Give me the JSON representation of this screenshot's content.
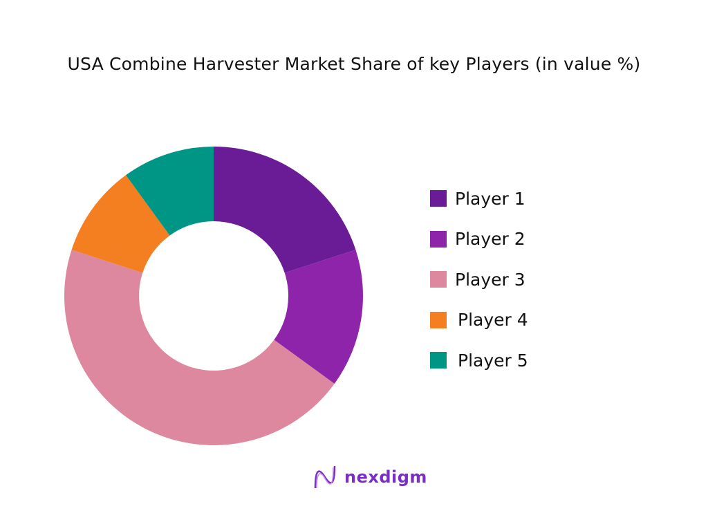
{
  "title": "USA Combine Harvester Market Share of key Players (in value %)",
  "legend": [
    {
      "label": "Player 1",
      "color": "#6a1b96"
    },
    {
      "label": "Player 2",
      "color": "#8e24aa"
    },
    {
      "label": "Player 3",
      "color": "#de889f"
    },
    {
      "label": "Player 4",
      "color": "#f47f21"
    },
    {
      "label": "Player 5",
      "color": "#009686"
    }
  ],
  "logo": {
    "text": "nexdigm"
  },
  "chart_data": {
    "type": "pie",
    "subtype": "donut",
    "title": "USA Combine Harvester Market Share of key Players (in value %)",
    "categories": [
      "Player 1",
      "Player 2",
      "Player 3",
      "Player 4",
      "Player 5"
    ],
    "values": [
      20,
      15,
      45,
      10,
      10
    ],
    "colors": [
      "#6a1b96",
      "#8e24aa",
      "#de889f",
      "#f47f21",
      "#009686"
    ],
    "unit": "%",
    "legend_position": "right",
    "start_angle": "top (12 o'clock), clockwise"
  }
}
